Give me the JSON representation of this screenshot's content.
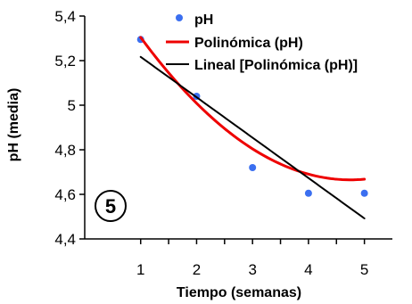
{
  "chart_data": {
    "type": "scatter",
    "xlabel": "Tiempo (semanas)",
    "ylabel": "pH (media)",
    "xlim": [
      0.0,
      5.5
    ],
    "ylim": [
      4.4,
      5.4
    ],
    "x_ticks": [
      1,
      2,
      3,
      4,
      5
    ],
    "y_ticks": [
      4.4,
      4.6,
      4.8,
      5.0,
      5.2,
      5.4
    ],
    "y_tick_labels": [
      "4,4",
      "4,6",
      "4,8",
      "5",
      "5,2",
      "5,4"
    ],
    "grid": false,
    "legend_position": "top-right",
    "badge": "5",
    "series": [
      {
        "name": "pH",
        "kind": "points",
        "color": "#3b6ff0",
        "x": [
          1,
          2,
          3,
          4,
          5
        ],
        "y": [
          5.295,
          5.04,
          4.72,
          4.605,
          4.605
        ]
      },
      {
        "name": "Polinómica (pH)",
        "kind": "polynomial-trend",
        "color": "#ee0000",
        "x_range": [
          1,
          5
        ],
        "coefficients": [
          5.691,
          -0.4321,
          0.0455
        ]
      },
      {
        "name": "Lineal [Polinómica (pH)]",
        "kind": "linear-trend",
        "color": "#000000",
        "x_range": [
          1,
          5
        ],
        "coefficients": [
          5.398,
          -0.1812
        ]
      }
    ]
  }
}
